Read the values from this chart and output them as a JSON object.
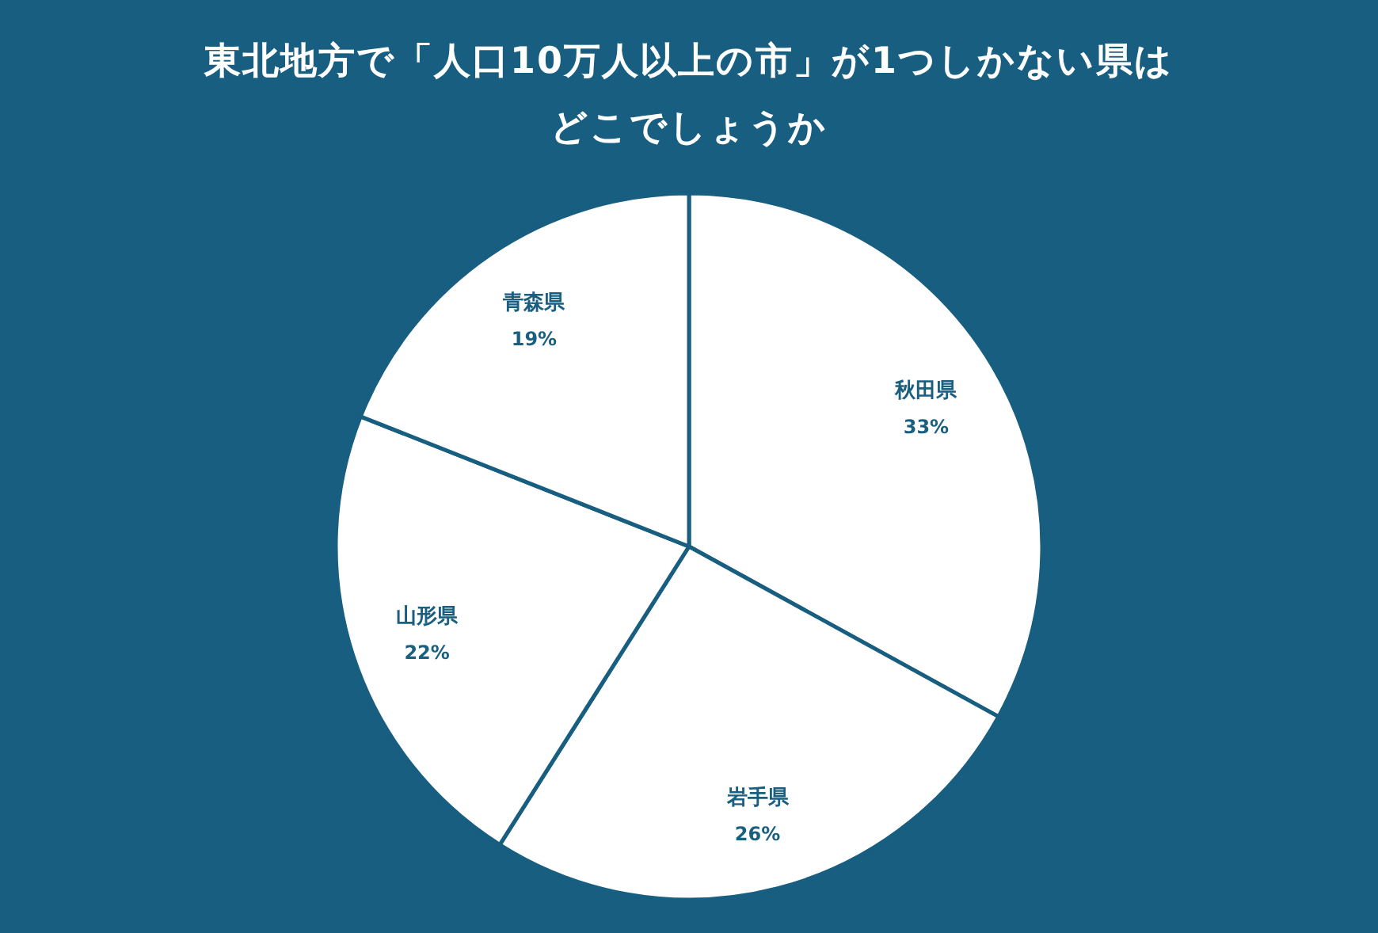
{
  "chart_data": {
    "type": "pie",
    "title": "東北地方で「人口10万人以上の市」が1つしかない県はどこでしょうか",
    "categories": [
      "秋田県",
      "岩手県",
      "山形県",
      "青森県"
    ],
    "values": [
      33,
      26,
      22,
      19
    ],
    "colors": [
      "#ffffff",
      "#ffffff",
      "#ffffff",
      "#ffffff"
    ],
    "value_labels": [
      "33%",
      "26%",
      "22%",
      "19%"
    ]
  }
}
